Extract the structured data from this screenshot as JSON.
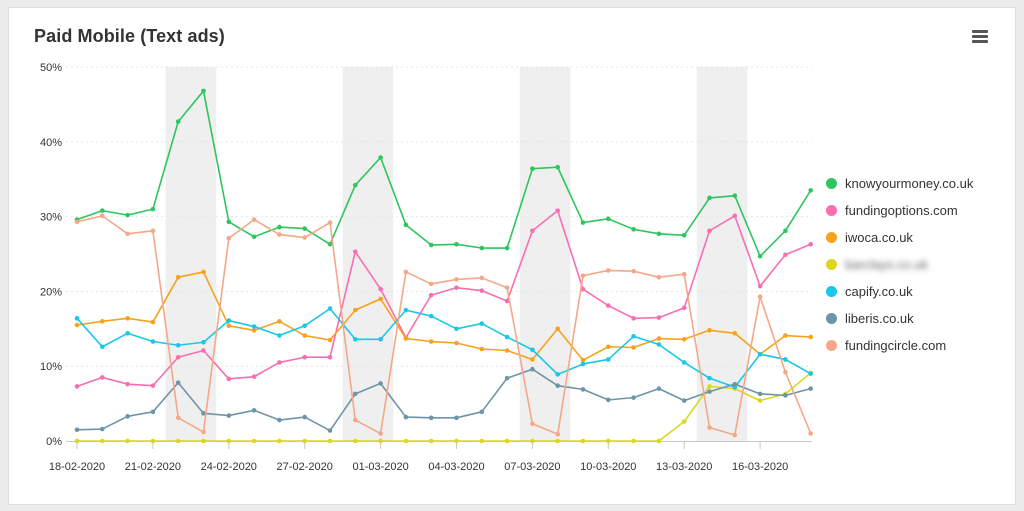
{
  "widget": {
    "title": "Paid Mobile (Text ads)",
    "menu_icon": "hamburger-menu-icon"
  },
  "chart_data": {
    "type": "line",
    "title": "Paid Mobile (Text ads)",
    "ylim": [
      0,
      50
    ],
    "y_ticks": [
      "0%",
      "10%",
      "20%",
      "30%",
      "40%",
      "50%"
    ],
    "x": [
      "18-02-2020",
      "19-02-2020",
      "20-02-2020",
      "21-02-2020",
      "22-02-2020",
      "23-02-2020",
      "24-02-2020",
      "25-02-2020",
      "26-02-2020",
      "27-02-2020",
      "28-02-2020",
      "29-02-2020",
      "01-03-2020",
      "02-03-2020",
      "03-03-2020",
      "04-03-2020",
      "05-03-2020",
      "06-03-2020",
      "07-03-2020",
      "08-03-2020",
      "09-03-2020",
      "10-03-2020",
      "11-03-2020",
      "12-03-2020",
      "13-03-2020",
      "14-03-2020",
      "15-03-2020",
      "16-03-2020",
      "17-03-2020",
      "18-03-2020"
    ],
    "x_tick_labels": [
      "18-02-2020",
      "21-02-2020",
      "24-02-2020",
      "27-02-2020",
      "01-03-2020",
      "04-03-2020",
      "07-03-2020",
      "10-03-2020",
      "13-03-2020",
      "16-03-2020"
    ],
    "shaded_bands": [
      {
        "from": "22-02-2020",
        "to": "23-02-2020"
      },
      {
        "from": "29-02-2020",
        "to": "01-03-2020"
      },
      {
        "from": "07-03-2020",
        "to": "08-03-2020"
      },
      {
        "from": "14-03-2020",
        "to": "15-03-2020"
      }
    ],
    "legend_position": "right",
    "grid": "horizontal",
    "series": [
      {
        "name": "knowyourmoney.co.uk",
        "color": "#2ec55e",
        "values": [
          29.6,
          30.8,
          30.2,
          31,
          42.7,
          46.8,
          29.3,
          27.3,
          28.6,
          28.4,
          26.3,
          34.2,
          37.9,
          28.9,
          26.2,
          26.3,
          25.8,
          25.8,
          36.4,
          36.6,
          29.2,
          29.7,
          28.3,
          27.7,
          27.5,
          32.5,
          32.8,
          24.7,
          28.1,
          33.5
        ]
      },
      {
        "name": "fundingoptions.com",
        "color": "#f76fb1",
        "values": [
          7.3,
          8.5,
          7.6,
          7.4,
          11.2,
          12.1,
          8.3,
          8.6,
          10.5,
          11.2,
          11.2,
          25.3,
          20.3,
          13.8,
          19.5,
          20.5,
          20.1,
          18.7,
          28.1,
          30.8,
          20.3,
          18.1,
          16.4,
          16.5,
          17.8,
          28.1,
          30.1,
          20.7,
          24.9,
          26.3
        ]
      },
      {
        "name": "iwoca.co.uk",
        "color": "#f6a21e",
        "values": [
          15.5,
          16,
          16.4,
          15.9,
          21.9,
          22.6,
          15.4,
          14.8,
          16,
          14.1,
          13.5,
          17.5,
          19,
          13.7,
          13.3,
          13.1,
          12.3,
          12.1,
          10.9,
          15,
          10.8,
          12.6,
          12.5,
          13.7,
          13.6,
          14.8,
          14.4,
          11.6,
          14.1,
          13.9
        ]
      },
      {
        "name": "barclays.co.uk",
        "color": "#dcd71e",
        "values": [
          0,
          0,
          0,
          0,
          0,
          0,
          0,
          0,
          0,
          0,
          0,
          0,
          0,
          0,
          0,
          0,
          0,
          0,
          0,
          0,
          0,
          0,
          0,
          0,
          2.6,
          7.3,
          7,
          5.4,
          6.3,
          9.1
        ]
      },
      {
        "name": "capify.co.uk",
        "color": "#18c8e8",
        "values": [
          16.4,
          12.6,
          14.4,
          13.3,
          12.8,
          13.2,
          16.1,
          15.3,
          14.1,
          15.4,
          17.7,
          13.6,
          13.6,
          17.5,
          16.7,
          15,
          15.7,
          13.9,
          12.2,
          8.9,
          10.3,
          10.9,
          14,
          12.9,
          10.5,
          8.4,
          7.2,
          11.6,
          10.9,
          9
        ]
      },
      {
        "name": "liberis.co.uk",
        "color": "#6e94a8",
        "values": [
          1.5,
          1.6,
          3.3,
          3.9,
          7.8,
          3.7,
          3.4,
          4.1,
          2.8,
          3.2,
          1.4,
          6.3,
          7.7,
          3.2,
          3.1,
          3.1,
          3.9,
          8.4,
          9.6,
          7.4,
          6.9,
          5.5,
          5.8,
          7,
          5.4,
          6.6,
          7.6,
          6.3,
          6.1,
          7
        ]
      },
      {
        "name": "fundingcircle.com",
        "color": "#f5a887",
        "values": [
          29.3,
          30.1,
          27.7,
          28.1,
          3.1,
          1.2,
          27.1,
          29.6,
          27.6,
          27.2,
          29.2,
          2.8,
          1,
          22.6,
          21,
          21.6,
          21.8,
          20.5,
          2.3,
          0.9,
          22.1,
          22.8,
          22.7,
          21.9,
          22.3,
          1.8,
          0.8,
          19.3,
          9.2,
          1
        ]
      }
    ]
  }
}
